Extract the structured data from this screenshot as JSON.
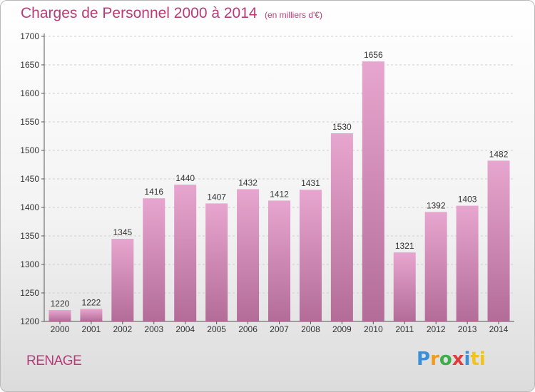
{
  "header": {
    "title": "Charges de Personnel 2000 à 2014",
    "subtitle": "(en milliers d'€)"
  },
  "footer": {
    "location": "RENAGE",
    "logo_text": "Proxiti",
    "logo_letters": [
      "P",
      "r",
      "o",
      "x",
      "i",
      "ti"
    ]
  },
  "colors": {
    "title": "#b83b78",
    "bar_top": "#e5a3cc",
    "bar_bottom": "#b36b97"
  },
  "chart_data": {
    "type": "bar",
    "title": "Charges de Personnel 2000 à 2014",
    "subtitle": "(en milliers d'€)",
    "categories": [
      "2000",
      "2001",
      "2002",
      "2003",
      "2004",
      "2005",
      "2006",
      "2007",
      "2008",
      "2009",
      "2010",
      "2011",
      "2012",
      "2013",
      "2014"
    ],
    "values": [
      1220,
      1222,
      1345,
      1416,
      1440,
      1407,
      1432,
      1412,
      1431,
      1530,
      1656,
      1321,
      1392,
      1403,
      1482
    ],
    "ylim": [
      1200,
      1700
    ],
    "yticks": [
      1200,
      1250,
      1300,
      1350,
      1400,
      1450,
      1500,
      1550,
      1600,
      1650,
      1700
    ],
    "grid": true,
    "legend": "none"
  }
}
